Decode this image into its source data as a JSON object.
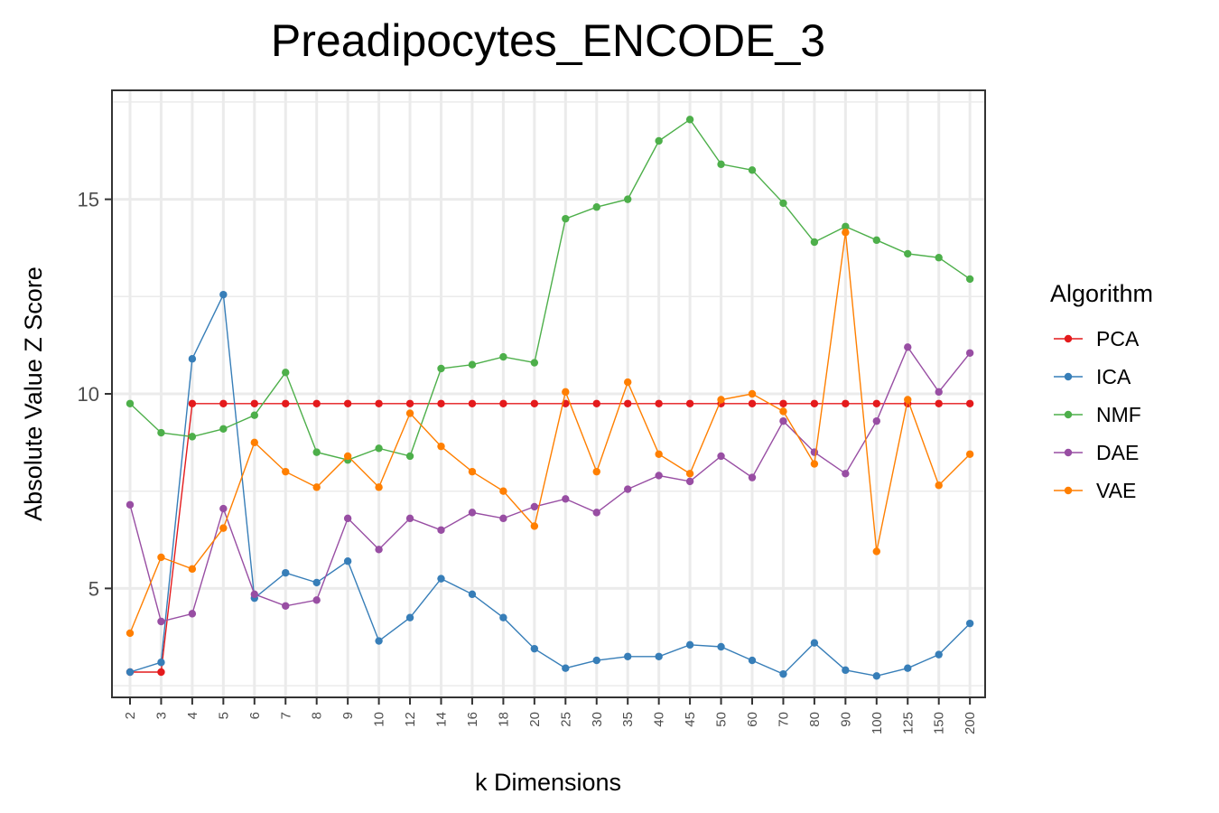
{
  "chart_data": {
    "type": "line",
    "title": "Preadipocytes_ENCODE_3",
    "xlabel": "k Dimensions",
    "ylabel": "Absolute Value Z Score",
    "categories": [
      "2",
      "3",
      "4",
      "5",
      "6",
      "7",
      "8",
      "9",
      "10",
      "12",
      "14",
      "16",
      "18",
      "20",
      "25",
      "30",
      "35",
      "40",
      "45",
      "50",
      "60",
      "70",
      "80",
      "90",
      "100",
      "125",
      "150",
      "200"
    ],
    "yticks": [
      5,
      10,
      15
    ],
    "ylim": [
      2.2,
      17.8
    ],
    "grid": true,
    "legend_title": "Algorithm",
    "legend_position": "right",
    "series": [
      {
        "name": "PCA",
        "color": "#e41a1c",
        "values": [
          2.85,
          2.85,
          9.75,
          9.75,
          9.75,
          9.75,
          9.75,
          9.75,
          9.75,
          9.75,
          9.75,
          9.75,
          9.75,
          9.75,
          9.75,
          9.75,
          9.75,
          9.75,
          9.75,
          9.75,
          9.75,
          9.75,
          9.75,
          9.75,
          9.75,
          9.75,
          9.75,
          9.75
        ]
      },
      {
        "name": "ICA",
        "color": "#377eb8",
        "values": [
          2.85,
          3.1,
          10.9,
          12.55,
          4.75,
          5.4,
          5.15,
          5.7,
          3.65,
          4.25,
          5.25,
          4.85,
          4.25,
          3.45,
          2.95,
          3.15,
          3.25,
          3.25,
          3.55,
          3.5,
          3.15,
          2.8,
          3.6,
          2.9,
          2.75,
          2.95,
          3.3,
          4.1
        ]
      },
      {
        "name": "NMF",
        "color": "#4daf4a",
        "values": [
          9.75,
          9.0,
          8.9,
          9.1,
          9.45,
          10.55,
          8.5,
          8.3,
          8.6,
          8.4,
          10.65,
          10.75,
          10.95,
          10.8,
          14.5,
          14.8,
          15.0,
          16.5,
          17.05,
          15.9,
          15.75,
          14.9,
          13.9,
          14.3,
          13.95,
          13.6,
          13.5,
          12.95
        ]
      },
      {
        "name": "DAE",
        "color": "#984ea3",
        "values": [
          7.15,
          4.15,
          4.35,
          7.05,
          4.85,
          4.55,
          4.7,
          6.8,
          6.0,
          6.8,
          6.5,
          6.95,
          6.8,
          7.1,
          7.3,
          6.95,
          7.55,
          7.9,
          7.75,
          8.4,
          7.85,
          9.3,
          8.5,
          7.95,
          9.3,
          11.2,
          10.05,
          11.05
        ]
      },
      {
        "name": "VAE",
        "color": "#ff7f00",
        "values": [
          3.85,
          5.8,
          5.5,
          6.55,
          8.75,
          8.0,
          7.6,
          8.4,
          7.6,
          9.5,
          8.65,
          8.0,
          7.5,
          6.6,
          10.05,
          8.0,
          10.3,
          8.45,
          7.95,
          9.85,
          10.0,
          9.55,
          8.2,
          14.15,
          5.95,
          9.85,
          7.65,
          8.45
        ]
      }
    ]
  }
}
